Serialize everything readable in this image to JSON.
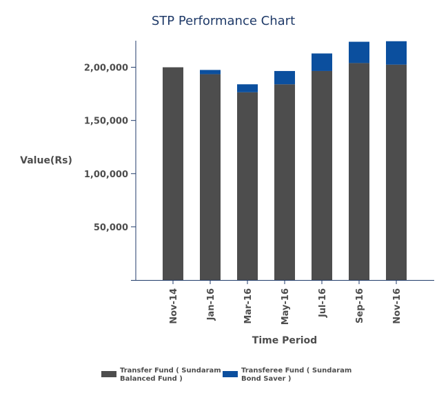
{
  "chart_data": {
    "type": "bar",
    "stacked": true,
    "title": "STP Performance Chart",
    "xlabel": "Time Period",
    "ylabel": "Value(Rs)",
    "categories": [
      "Nov-14",
      "Jan-16",
      "Mar-16",
      "May-16",
      "Jul-16",
      "Sep-16",
      "Nov-16"
    ],
    "yticks": [
      "50,000",
      "1,00,000",
      "1,50,000",
      "2,00,000"
    ],
    "ytick_values": [
      50000,
      100000,
      150000,
      200000
    ],
    "ylim": [
      0,
      225000
    ],
    "grid": false,
    "legend_position": "bottom",
    "series": [
      {
        "name": "Transfer Fund ( Sundaram Balanced Fund )",
        "legend_lines": [
          "Transfer Fund ( Sundaram",
          "Balanced Fund )"
        ],
        "color": "#4d4d4d",
        "values": [
          200000,
          193500,
          176500,
          184000,
          196500,
          204000,
          202500
        ]
      },
      {
        "name": "Transferee Fund ( Sundaram Bond Saver )",
        "legend_lines": [
          "Transferee Fund ( Sundaram",
          "Bond Saver )"
        ],
        "color": "#0b4f9e",
        "values": [
          0,
          4000,
          7500,
          12500,
          16500,
          20000,
          22000
        ]
      }
    ],
    "axis_color": "#1f3a68"
  }
}
